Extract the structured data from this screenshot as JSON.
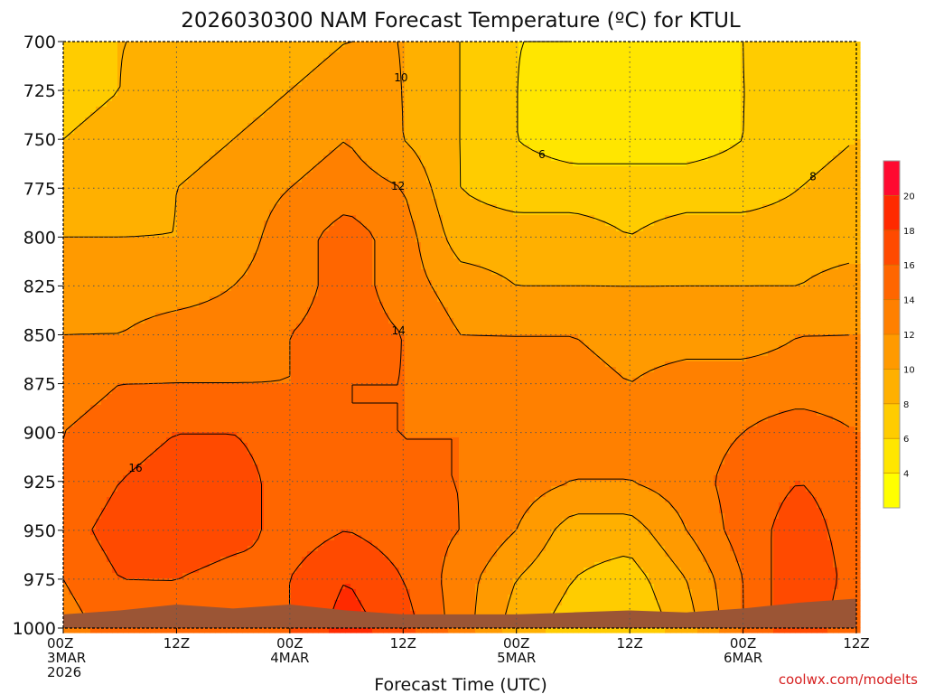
{
  "chart_data": {
    "type": "heatmap",
    "title": "2026030300 NAM Forecast Temperature (ºC) for KTUL",
    "xlabel": "Forecast Time (UTC)",
    "ylabel": "",
    "credit": "coolwx.com/modelts",
    "x_hours": [
      0,
      6,
      12,
      18,
      24,
      30,
      36,
      42,
      48,
      54,
      60,
      66,
      72,
      78,
      84
    ],
    "x_ticks": [
      {
        "hour": 0,
        "lines": [
          "00Z",
          "3MAR",
          "2026"
        ]
      },
      {
        "hour": 12,
        "lines": [
          "12Z"
        ]
      },
      {
        "hour": 24,
        "lines": [
          "00Z",
          "4MAR"
        ]
      },
      {
        "hour": 36,
        "lines": [
          "12Z"
        ]
      },
      {
        "hour": 48,
        "lines": [
          "00Z",
          "5MAR"
        ]
      },
      {
        "hour": 60,
        "lines": [
          "12Z"
        ]
      },
      {
        "hour": 72,
        "lines": [
          "00Z",
          "6MAR"
        ]
      },
      {
        "hour": 84,
        "lines": [
          "12Z"
        ]
      }
    ],
    "y_pressure": [
      700,
      725,
      750,
      775,
      800,
      825,
      850,
      875,
      900,
      925,
      950,
      975,
      1000
    ],
    "y_ticks": [
      "700",
      "725",
      "750",
      "775",
      "800",
      "825",
      "850",
      "875",
      "900",
      "925",
      "950",
      "975",
      "1000"
    ],
    "ylim": [
      700,
      1000
    ],
    "xlim": [
      0,
      84
    ],
    "ground_pressure": [
      993,
      991,
      988,
      990,
      988,
      991,
      993,
      993,
      993,
      992,
      991,
      992,
      990,
      987,
      985
    ],
    "temperature": [
      [
        7,
        8,
        8,
        8,
        9,
        10,
        10,
        8,
        6,
        6,
        4,
        4,
        6,
        8,
        7
      ],
      [
        7,
        8,
        9,
        9,
        10,
        11,
        10,
        8,
        6,
        5,
        4,
        4,
        6,
        7,
        7
      ],
      [
        8,
        9,
        9,
        10,
        11,
        12,
        10,
        8,
        6,
        5,
        5,
        5,
        6,
        7,
        8
      ],
      [
        9,
        9,
        10,
        11,
        12,
        13,
        12,
        8,
        7,
        7,
        7,
        7,
        7,
        8,
        9
      ],
      [
        10,
        10,
        10,
        11,
        13,
        15,
        13,
        9,
        9,
        9,
        8,
        9,
        9,
        9,
        9
      ],
      [
        11,
        11,
        11,
        12,
        13,
        15,
        13,
        11,
        10,
        10,
        10,
        10,
        10,
        10,
        11
      ],
      [
        12,
        12,
        13,
        13,
        14,
        15,
        14,
        12,
        12,
        12,
        11,
        11,
        11,
        12,
        12
      ],
      [
        13,
        14,
        14,
        14,
        14,
        14,
        14,
        13,
        13,
        13,
        12,
        13,
        13,
        13,
        13
      ],
      [
        14,
        15,
        16,
        16,
        15,
        14,
        14,
        14,
        13,
        13,
        13,
        13,
        14,
        15,
        14
      ],
      [
        14,
        16,
        17,
        17,
        15,
        15,
        14,
        14,
        13,
        12,
        12,
        13,
        15,
        16,
        15
      ],
      [
        15,
        17,
        18,
        17,
        15,
        16,
        15,
        14,
        12,
        9,
        9,
        12,
        15,
        17,
        15
      ],
      [
        14,
        16,
        16,
        15,
        16,
        18,
        16,
        13,
        10,
        8,
        7,
        10,
        14,
        18,
        15
      ],
      [
        13,
        15,
        15,
        14,
        16,
        19,
        17,
        13,
        9,
        7,
        6,
        9,
        14,
        18,
        14
      ]
    ],
    "contour_interval": 2,
    "colorbar": {
      "levels": [
        2,
        4,
        6,
        8,
        10,
        12,
        14,
        16,
        18,
        20,
        22
      ],
      "tick_labels": [
        "4",
        "6",
        "8",
        "10",
        "12",
        "14",
        "16",
        "18",
        "20"
      ],
      "colors": [
        "#ffff00",
        "#ffe600",
        "#ffcc00",
        "#ffb000",
        "#ff9a00",
        "#ff8000",
        "#ff6600",
        "#ff4a00",
        "#ff2a00",
        "#ff0a30"
      ]
    },
    "ground_color": "#9b5535",
    "grid": true
  }
}
